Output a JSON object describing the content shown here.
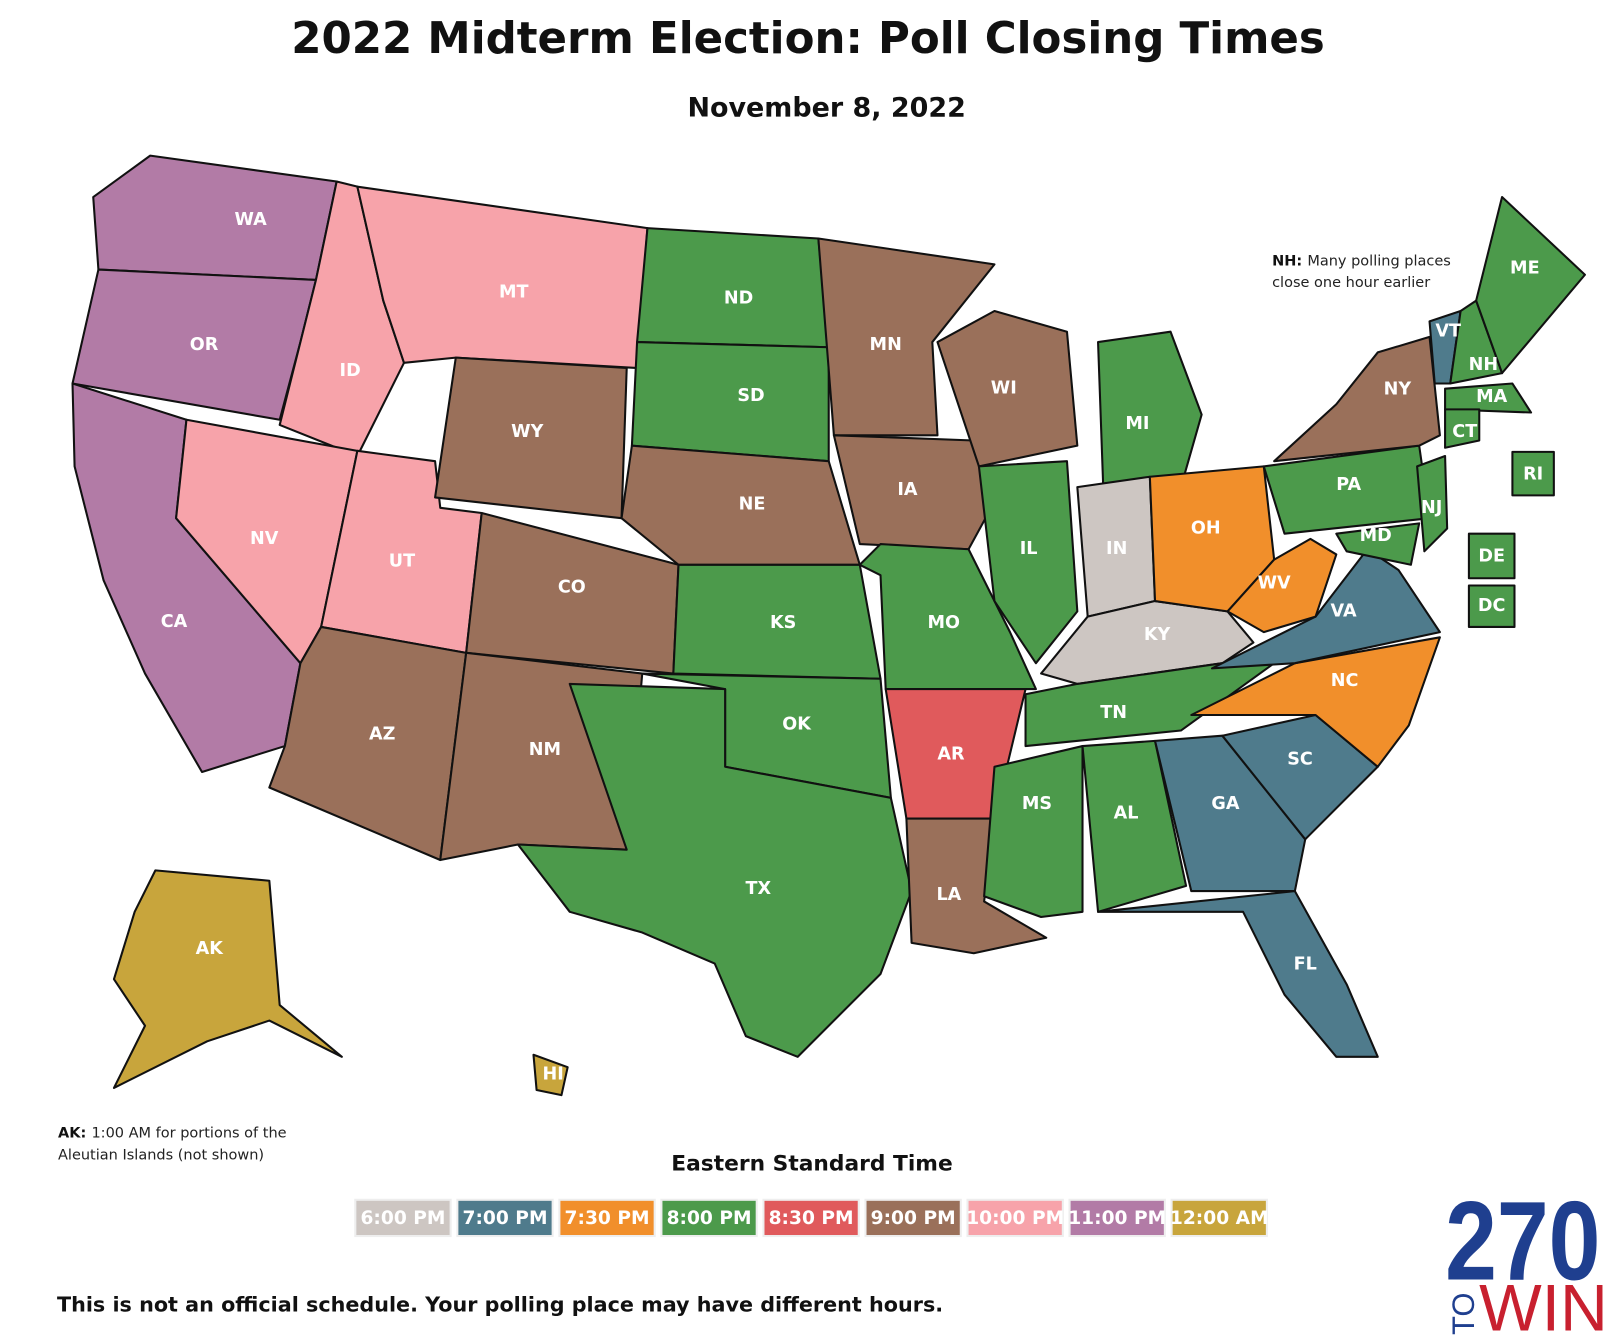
{
  "header": {
    "title": "2022 Midterm Election: Poll Closing Times",
    "subtitle": "November 8, 2022"
  },
  "map": {
    "states": [
      {
        "abbr": "WA",
        "closes": "11:00 PM"
      },
      {
        "abbr": "OR",
        "closes": "11:00 PM"
      },
      {
        "abbr": "CA",
        "closes": "11:00 PM"
      },
      {
        "abbr": "ID",
        "closes": "10:00 PM"
      },
      {
        "abbr": "MT",
        "closes": "10:00 PM"
      },
      {
        "abbr": "NV",
        "closes": "10:00 PM"
      },
      {
        "abbr": "UT",
        "closes": "10:00 PM"
      },
      {
        "abbr": "AZ",
        "closes": "9:00 PM"
      },
      {
        "abbr": "WY",
        "closes": "9:00 PM"
      },
      {
        "abbr": "CO",
        "closes": "9:00 PM"
      },
      {
        "abbr": "NM",
        "closes": "9:00 PM"
      },
      {
        "abbr": "ND",
        "closes": "8:00 PM"
      },
      {
        "abbr": "SD",
        "closes": "8:00 PM"
      },
      {
        "abbr": "NE",
        "closes": "9:00 PM"
      },
      {
        "abbr": "KS",
        "closes": "8:00 PM"
      },
      {
        "abbr": "OK",
        "closes": "8:00 PM"
      },
      {
        "abbr": "TX",
        "closes": "8:00 PM"
      },
      {
        "abbr": "MN",
        "closes": "9:00 PM"
      },
      {
        "abbr": "IA",
        "closes": "9:00 PM"
      },
      {
        "abbr": "MO",
        "closes": "8:00 PM"
      },
      {
        "abbr": "AR",
        "closes": "8:30 PM"
      },
      {
        "abbr": "LA",
        "closes": "9:00 PM"
      },
      {
        "abbr": "WI",
        "closes": "9:00 PM"
      },
      {
        "abbr": "IL",
        "closes": "8:00 PM"
      },
      {
        "abbr": "MI",
        "closes": "8:00 PM"
      },
      {
        "abbr": "IN",
        "closes": "6:00 PM"
      },
      {
        "abbr": "KY",
        "closes": "6:00 PM"
      },
      {
        "abbr": "OH",
        "closes": "7:30 PM"
      },
      {
        "abbr": "TN",
        "closes": "8:00 PM"
      },
      {
        "abbr": "MS",
        "closes": "8:00 PM"
      },
      {
        "abbr": "AL",
        "closes": "8:00 PM"
      },
      {
        "abbr": "GA",
        "closes": "7:00 PM"
      },
      {
        "abbr": "FL",
        "closes": "7:00 PM"
      },
      {
        "abbr": "SC",
        "closes": "7:00 PM"
      },
      {
        "abbr": "NC",
        "closes": "7:30 PM"
      },
      {
        "abbr": "VA",
        "closes": "7:00 PM"
      },
      {
        "abbr": "WV",
        "closes": "7:30 PM"
      },
      {
        "abbr": "PA",
        "closes": "8:00 PM"
      },
      {
        "abbr": "NY",
        "closes": "9:00 PM"
      },
      {
        "abbr": "VT",
        "closes": "7:00 PM"
      },
      {
        "abbr": "NH",
        "closes": "8:00 PM"
      },
      {
        "abbr": "ME",
        "closes": "8:00 PM"
      },
      {
        "abbr": "MA",
        "closes": "8:00 PM"
      },
      {
        "abbr": "CT",
        "closes": "8:00 PM"
      },
      {
        "abbr": "NJ",
        "closes": "8:00 PM"
      },
      {
        "abbr": "MD",
        "closes": "8:00 PM"
      },
      {
        "abbr": "RI",
        "closes": "8:00 PM"
      },
      {
        "abbr": "DE",
        "closes": "8:00 PM"
      },
      {
        "abbr": "DC",
        "closes": "8:00 PM"
      },
      {
        "abbr": "AK",
        "closes": "12:00 AM"
      },
      {
        "abbr": "HI",
        "closes": "12:00 AM"
      }
    ]
  },
  "notes": {
    "nh": {
      "label": "NH:",
      "lines": [
        "Many polling places",
        "close one hour earlier"
      ]
    },
    "ak": {
      "label": "AK:",
      "lines": [
        "1:00 AM for portions of the",
        "Aleutian Islands (not shown)"
      ]
    }
  },
  "legend": {
    "title": "Eastern Standard Time",
    "items": [
      {
        "label": "6:00 PM",
        "color": "#cdc6c2"
      },
      {
        "label": "7:00 PM",
        "color": "#4f7b8c"
      },
      {
        "label": "7:30 PM",
        "color": "#f18f2b"
      },
      {
        "label": "8:00 PM",
        "color": "#4c9a4b"
      },
      {
        "label": "8:30 PM",
        "color": "#e05a5c"
      },
      {
        "label": "9:00 PM",
        "color": "#9a705a"
      },
      {
        "label": "10:00 PM",
        "color": "#f7a3aa"
      },
      {
        "label": "11:00 PM",
        "color": "#b27ba6"
      },
      {
        "label": "12:00 AM",
        "color": "#c8a53c"
      }
    ]
  },
  "footer": "This is not an official schedule. Your polling place may have different hours.",
  "logo": {
    "number": "270",
    "to": "TO",
    "win": "WIN"
  }
}
